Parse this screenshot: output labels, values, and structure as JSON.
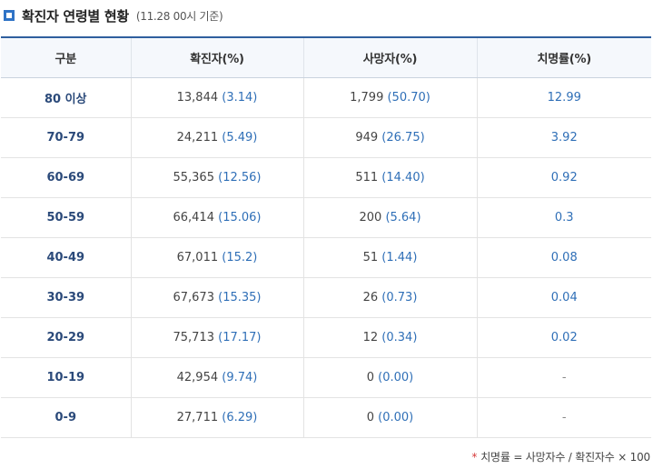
{
  "header": {
    "title": "확진자 연령별 현황",
    "subtitle": "(11.28 00시 기준)"
  },
  "table": {
    "columns": [
      "구분",
      "확진자(%)",
      "사망자(%)",
      "치명률(%)"
    ],
    "rows": [
      {
        "age": "80 이상",
        "cases": "13,844",
        "cases_pct": "(3.14)",
        "deaths": "1,799",
        "deaths_pct": "(50.70)",
        "cfr": "12.99"
      },
      {
        "age": "70-79",
        "cases": "24,211",
        "cases_pct": "(5.49)",
        "deaths": "949",
        "deaths_pct": "(26.75)",
        "cfr": "3.92"
      },
      {
        "age": "60-69",
        "cases": "55,365",
        "cases_pct": "(12.56)",
        "deaths": "511",
        "deaths_pct": "(14.40)",
        "cfr": "0.92"
      },
      {
        "age": "50-59",
        "cases": "66,414",
        "cases_pct": "(15.06)",
        "deaths": "200",
        "deaths_pct": "(5.64)",
        "cfr": "0.3"
      },
      {
        "age": "40-49",
        "cases": "67,011",
        "cases_pct": "(15.2)",
        "deaths": "51",
        "deaths_pct": "(1.44)",
        "cfr": "0.08"
      },
      {
        "age": "30-39",
        "cases": "67,673",
        "cases_pct": "(15.35)",
        "deaths": "26",
        "deaths_pct": "(0.73)",
        "cfr": "0.04"
      },
      {
        "age": "20-29",
        "cases": "75,713",
        "cases_pct": "(17.17)",
        "deaths": "12",
        "deaths_pct": "(0.34)",
        "cfr": "0.02"
      },
      {
        "age": "10-19",
        "cases": "42,954",
        "cases_pct": "(9.74)",
        "deaths": "0",
        "deaths_pct": "(0.00)",
        "cfr": "-"
      },
      {
        "age": "0-9",
        "cases": "27,711",
        "cases_pct": "(6.29)",
        "deaths": "0",
        "deaths_pct": "(0.00)",
        "cfr": "-"
      }
    ]
  },
  "footnote": {
    "mark": "*",
    "text": "치명률 = 사망자수 / 확진자수 × 100"
  },
  "colors": {
    "accent": "#2f73c6",
    "header_rule": "#2f5f9e",
    "footnote_mark": "#d63a3a"
  },
  "icons": {
    "title_marker": "square-bullet-icon"
  }
}
